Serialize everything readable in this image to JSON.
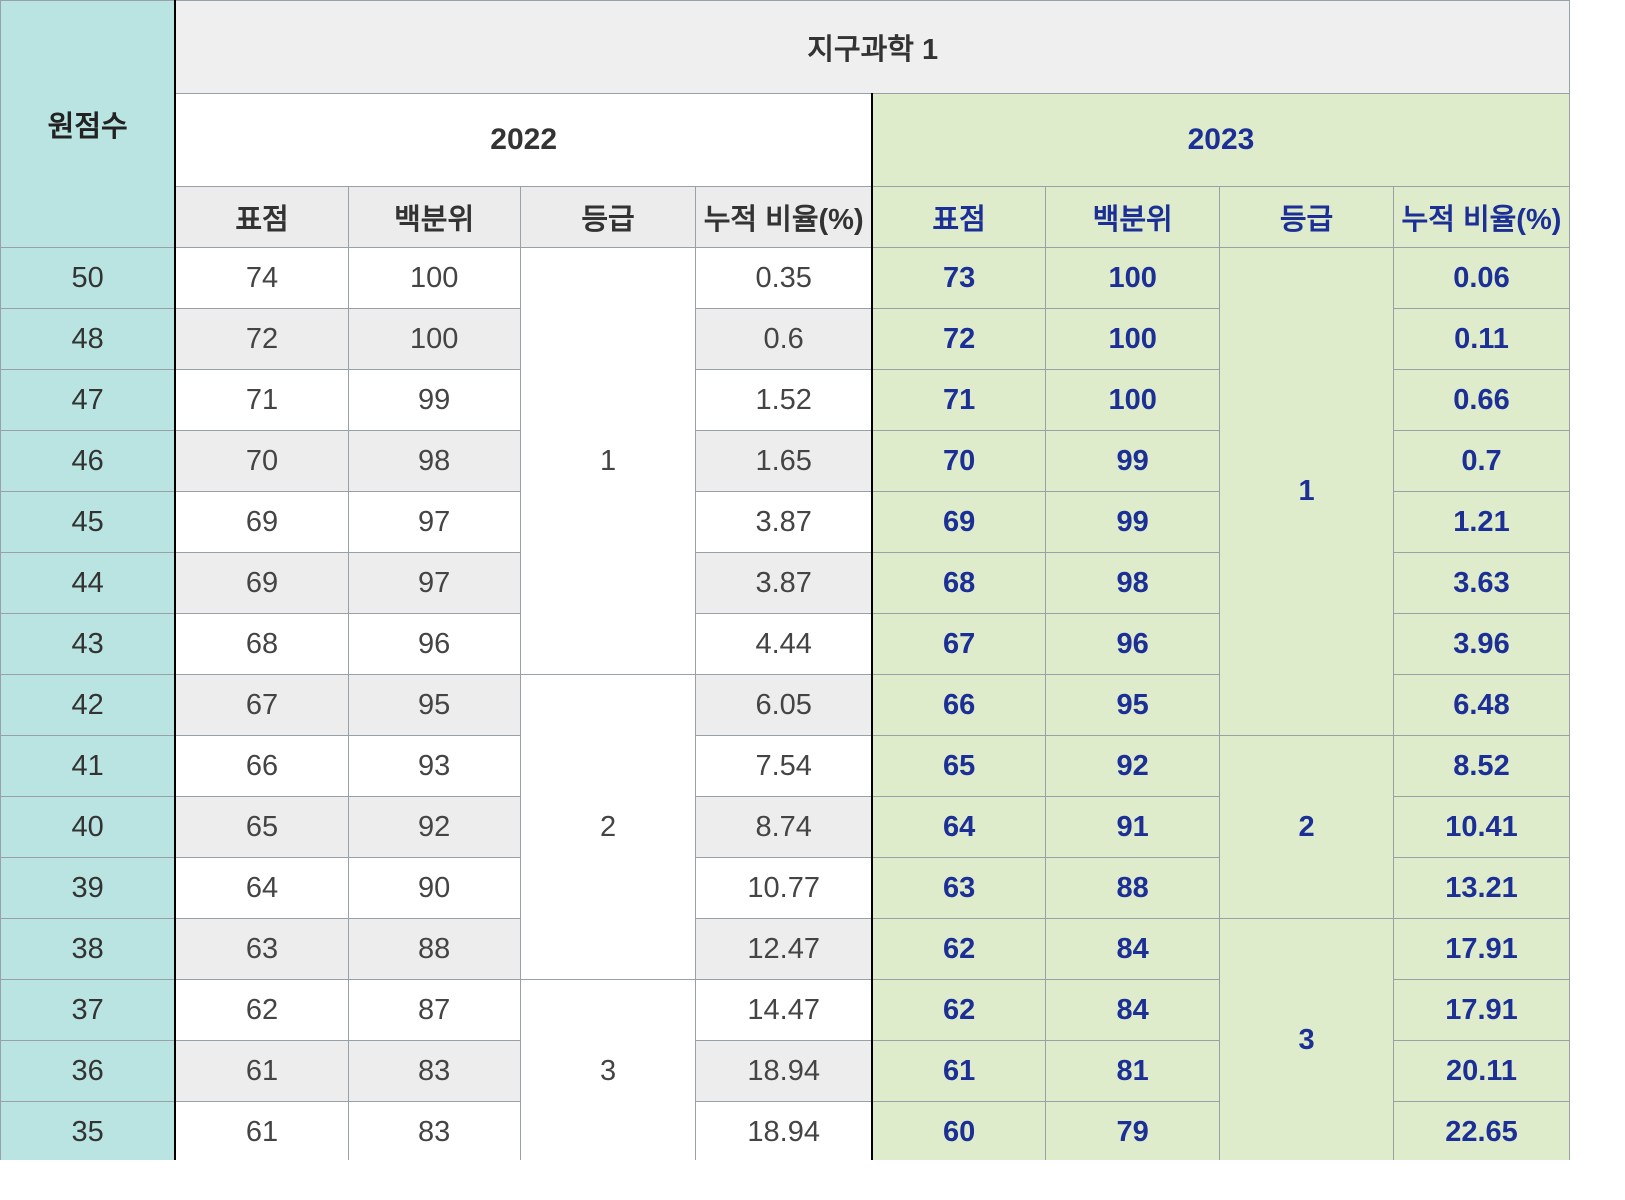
{
  "header": {
    "raw_label": "원점수",
    "subject": "지구과학 1",
    "year_a": "2022",
    "year_b": "2023",
    "col_std": "표점",
    "col_pct": "백분위",
    "col_grade": "등급",
    "col_cum": "누적 비율(%)"
  },
  "rows": [
    {
      "raw": "50",
      "a_std": "74",
      "a_pct": "100",
      "a_cum": "0.35",
      "b_std": "73",
      "b_pct": "100",
      "b_cum": "0.06"
    },
    {
      "raw": "48",
      "a_std": "72",
      "a_pct": "100",
      "a_cum": "0.6",
      "b_std": "72",
      "b_pct": "100",
      "b_cum": "0.11"
    },
    {
      "raw": "47",
      "a_std": "71",
      "a_pct": "99",
      "a_cum": "1.52",
      "b_std": "71",
      "b_pct": "100",
      "b_cum": "0.66"
    },
    {
      "raw": "46",
      "a_std": "70",
      "a_pct": "98",
      "a_cum": "1.65",
      "b_std": "70",
      "b_pct": "99",
      "b_cum": "0.7"
    },
    {
      "raw": "45",
      "a_std": "69",
      "a_pct": "97",
      "a_cum": "3.87",
      "b_std": "69",
      "b_pct": "99",
      "b_cum": "1.21"
    },
    {
      "raw": "44",
      "a_std": "69",
      "a_pct": "97",
      "a_cum": "3.87",
      "b_std": "68",
      "b_pct": "98",
      "b_cum": "3.63"
    },
    {
      "raw": "43",
      "a_std": "68",
      "a_pct": "96",
      "a_cum": "4.44",
      "b_std": "67",
      "b_pct": "96",
      "b_cum": "3.96"
    },
    {
      "raw": "42",
      "a_std": "67",
      "a_pct": "95",
      "a_cum": "6.05",
      "b_std": "66",
      "b_pct": "95",
      "b_cum": "6.48"
    },
    {
      "raw": "41",
      "a_std": "66",
      "a_pct": "93",
      "a_cum": "7.54",
      "b_std": "65",
      "b_pct": "92",
      "b_cum": "8.52"
    },
    {
      "raw": "40",
      "a_std": "65",
      "a_pct": "92",
      "a_cum": "8.74",
      "b_std": "64",
      "b_pct": "91",
      "b_cum": "10.41"
    },
    {
      "raw": "39",
      "a_std": "64",
      "a_pct": "90",
      "a_cum": "10.77",
      "b_std": "63",
      "b_pct": "88",
      "b_cum": "13.21"
    },
    {
      "raw": "38",
      "a_std": "63",
      "a_pct": "88",
      "a_cum": "12.47",
      "b_std": "62",
      "b_pct": "84",
      "b_cum": "17.91"
    },
    {
      "raw": "37",
      "a_std": "62",
      "a_pct": "87",
      "a_cum": "14.47",
      "b_std": "62",
      "b_pct": "84",
      "b_cum": "17.91"
    },
    {
      "raw": "36",
      "a_std": "61",
      "a_pct": "83",
      "a_cum": "18.94",
      "b_std": "61",
      "b_pct": "81",
      "b_cum": "20.11"
    },
    {
      "raw": "35",
      "a_std": "61",
      "a_pct": "83",
      "a_cum": "18.94",
      "b_std": "60",
      "b_pct": "79",
      "b_cum": "22.65"
    }
  ],
  "grades_2022": [
    "1",
    "2",
    "3"
  ],
  "grades_2023": [
    "1",
    "2",
    "3"
  ],
  "colors": {
    "raw_bg": "#b9e4e1",
    "y2023_bg": "#dfeccb",
    "y2023_text": "#1b2f96"
  }
}
